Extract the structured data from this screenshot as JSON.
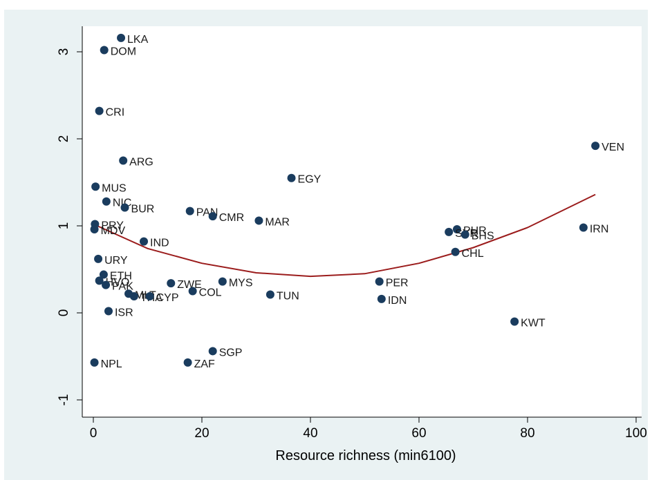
{
  "chart_data": {
    "type": "scatter",
    "title": "",
    "xlabel": "Resource richness (min6100)",
    "ylabel": "",
    "xlim": [
      0,
      100
    ],
    "ylim": [
      -1,
      3.2
    ],
    "x_ticks": [
      "0",
      "20",
      "40",
      "60",
      "80",
      "100"
    ],
    "x_tick_values": [
      0,
      20,
      40,
      60,
      80,
      100
    ],
    "y_ticks": [
      "-1",
      "0",
      "1",
      "2",
      "3"
    ],
    "y_tick_values": [
      -1,
      0,
      1,
      2,
      3
    ],
    "grid": false,
    "colors": {
      "marker": "#1a3c5e",
      "fit": "#9b1c1c",
      "plot_bg": "#ffffff",
      "outer_bg": "#eaf2f3"
    },
    "points": [
      {
        "label": "LKA",
        "x": 5.1,
        "y": 3.16
      },
      {
        "label": "DOM",
        "x": 2.0,
        "y": 3.02
      },
      {
        "label": "CRI",
        "x": 1.1,
        "y": 2.32
      },
      {
        "label": "VEN",
        "x": 92.5,
        "y": 1.92
      },
      {
        "label": "ARG",
        "x": 5.5,
        "y": 1.75
      },
      {
        "label": "EGY",
        "x": 36.5,
        "y": 1.55
      },
      {
        "label": "MUS",
        "x": 0.4,
        "y": 1.45
      },
      {
        "label": "NIC",
        "x": 2.4,
        "y": 1.28
      },
      {
        "label": "BUR",
        "x": 5.8,
        "y": 1.21
      },
      {
        "label": "PAN",
        "x": 17.8,
        "y": 1.17
      },
      {
        "label": "CMR",
        "x": 22.0,
        "y": 1.11
      },
      {
        "label": "MAR",
        "x": 30.5,
        "y": 1.06
      },
      {
        "label": "PRY",
        "x": 0.3,
        "y": 1.02
      },
      {
        "label": "MDV",
        "x": 0.2,
        "y": 0.96
      },
      {
        "label": "IRN",
        "x": 90.3,
        "y": 0.98
      },
      {
        "label": "PHR",
        "x": 67.0,
        "y": 0.96
      },
      {
        "label": "SYR",
        "x": 65.5,
        "y": 0.93
      },
      {
        "label": "BHS",
        "x": 68.5,
        "y": 0.9
      },
      {
        "label": "IND",
        "x": 9.3,
        "y": 0.82
      },
      {
        "label": "CHL",
        "x": 66.7,
        "y": 0.7
      },
      {
        "label": "URY",
        "x": 0.9,
        "y": 0.62
      },
      {
        "label": "ETH",
        "x": 1.9,
        "y": 0.44
      },
      {
        "label": "HVO",
        "x": 1.1,
        "y": 0.37
      },
      {
        "label": "PAK",
        "x": 2.3,
        "y": 0.32
      },
      {
        "label": "ZWE",
        "x": 14.3,
        "y": 0.34
      },
      {
        "label": "MYS",
        "x": 23.8,
        "y": 0.36
      },
      {
        "label": "PER",
        "x": 52.7,
        "y": 0.36
      },
      {
        "label": "MLT",
        "x": 6.5,
        "y": 0.22
      },
      {
        "label": "THA",
        "x": 7.5,
        "y": 0.19
      },
      {
        "label": "CYP",
        "x": 10.4,
        "y": 0.19
      },
      {
        "label": "COL",
        "x": 18.3,
        "y": 0.25
      },
      {
        "label": "TUN",
        "x": 32.6,
        "y": 0.21
      },
      {
        "label": "IDN",
        "x": 53.1,
        "y": 0.16
      },
      {
        "label": "ISR",
        "x": 2.8,
        "y": 0.02
      },
      {
        "label": "KWT",
        "x": 77.6,
        "y": -0.1
      },
      {
        "label": "SGP",
        "x": 22.0,
        "y": -0.44
      },
      {
        "label": "NPL",
        "x": 0.2,
        "y": -0.57
      },
      {
        "label": "ZAF",
        "x": 17.4,
        "y": -0.57
      }
    ],
    "fit": {
      "type": "quadratic",
      "x": [
        0,
        10,
        20,
        30,
        40,
        50,
        60,
        70,
        80,
        92.5
      ],
      "y": [
        1.02,
        0.74,
        0.57,
        0.46,
        0.42,
        0.45,
        0.57,
        0.75,
        0.98,
        1.36
      ]
    }
  }
}
